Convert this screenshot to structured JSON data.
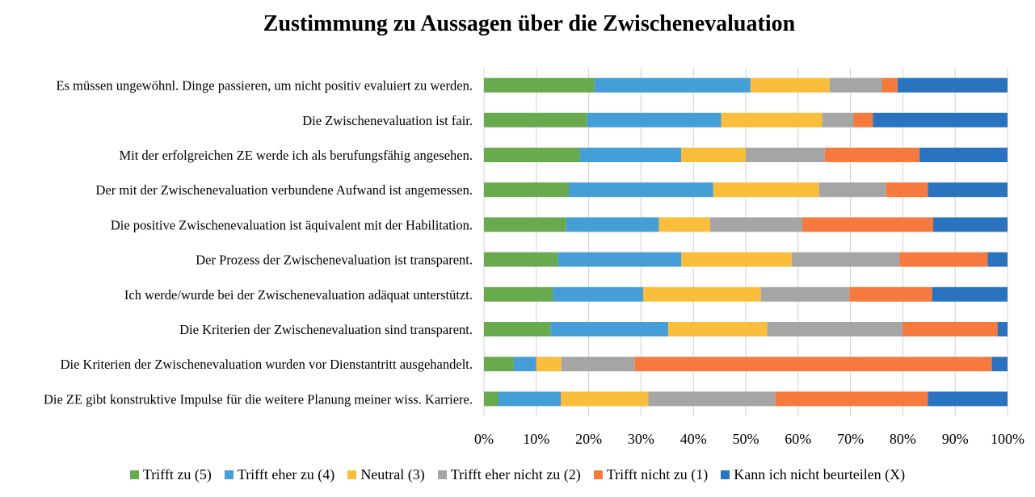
{
  "chart_data": {
    "type": "bar",
    "orientation": "horizontal",
    "stacked": true,
    "percent": true,
    "title": "Zustimmung zu Aussagen über die Zwischenevaluation",
    "xlim": [
      0,
      100
    ],
    "x_ticks": [
      "0%",
      "10%",
      "20%",
      "30%",
      "40%",
      "50%",
      "60%",
      "70%",
      "80%",
      "90%",
      "100%"
    ],
    "grid": true,
    "legend_position": "bottom",
    "categories": [
      "Es müssen ungewöhnl. Dinge passieren, um nicht positiv evaluiert zu werden.",
      "Die Zwischenevaluation ist fair.",
      "Mit der erfolgreichen ZE werde ich als berufungsfähig angesehen.",
      "Der mit der Zwischenevaluation verbundene Aufwand ist angemessen.",
      "Die positive Zwischenevaluation ist äquivalent mit der Habilitation.",
      "Der Prozess der Zwischenevaluation ist transparent.",
      "Ich werde/wurde bei der Zwischenevaluation adäquat unterstützt.",
      "Die Kriterien der Zwischenevaluation sind transparent.",
      "Die Kriterien der Zwischenevaluation wurden vor Dienstantritt ausgehandelt.",
      "Die ZE gibt konstruktive Impulse für die weitere Planung meiner wiss. Karriere."
    ],
    "series": [
      {
        "name": "Trifft zu (5)",
        "color": "#6aaa4f",
        "values": [
          21.1,
          19.7,
          18.3,
          16.2,
          15.7,
          14.1,
          13.2,
          12.7,
          5.7,
          2.7
        ]
      },
      {
        "name": "Trifft eher zu (4)",
        "color": "#459fd6",
        "values": [
          29.8,
          25.6,
          19.4,
          27.6,
          17.7,
          23.6,
          17.2,
          22.5,
          4.3,
          12.0
        ]
      },
      {
        "name": "Neutral (3)",
        "color": "#fbbd3c",
        "values": [
          15.1,
          19.3,
          12.3,
          20.2,
          9.8,
          21.1,
          22.5,
          18.9,
          4.8,
          16.7
        ]
      },
      {
        "name": "Trifft eher nicht zu (2)",
        "color": "#a5a5a5",
        "values": [
          10.0,
          6.0,
          15.1,
          12.8,
          17.6,
          20.6,
          16.9,
          25.9,
          14.0,
          24.3
        ]
      },
      {
        "name": "Trifft nicht zu (1)",
        "color": "#f6793e",
        "values": [
          3.0,
          3.7,
          18.1,
          8.0,
          25.0,
          16.8,
          15.8,
          18.1,
          68.2,
          29.1
        ]
      },
      {
        "name": "Kann ich nicht beurteilen (X)",
        "color": "#2a74bf",
        "values": [
          21.0,
          25.7,
          16.8,
          15.2,
          14.2,
          3.8,
          14.4,
          1.9,
          3.0,
          15.2
        ]
      }
    ]
  }
}
